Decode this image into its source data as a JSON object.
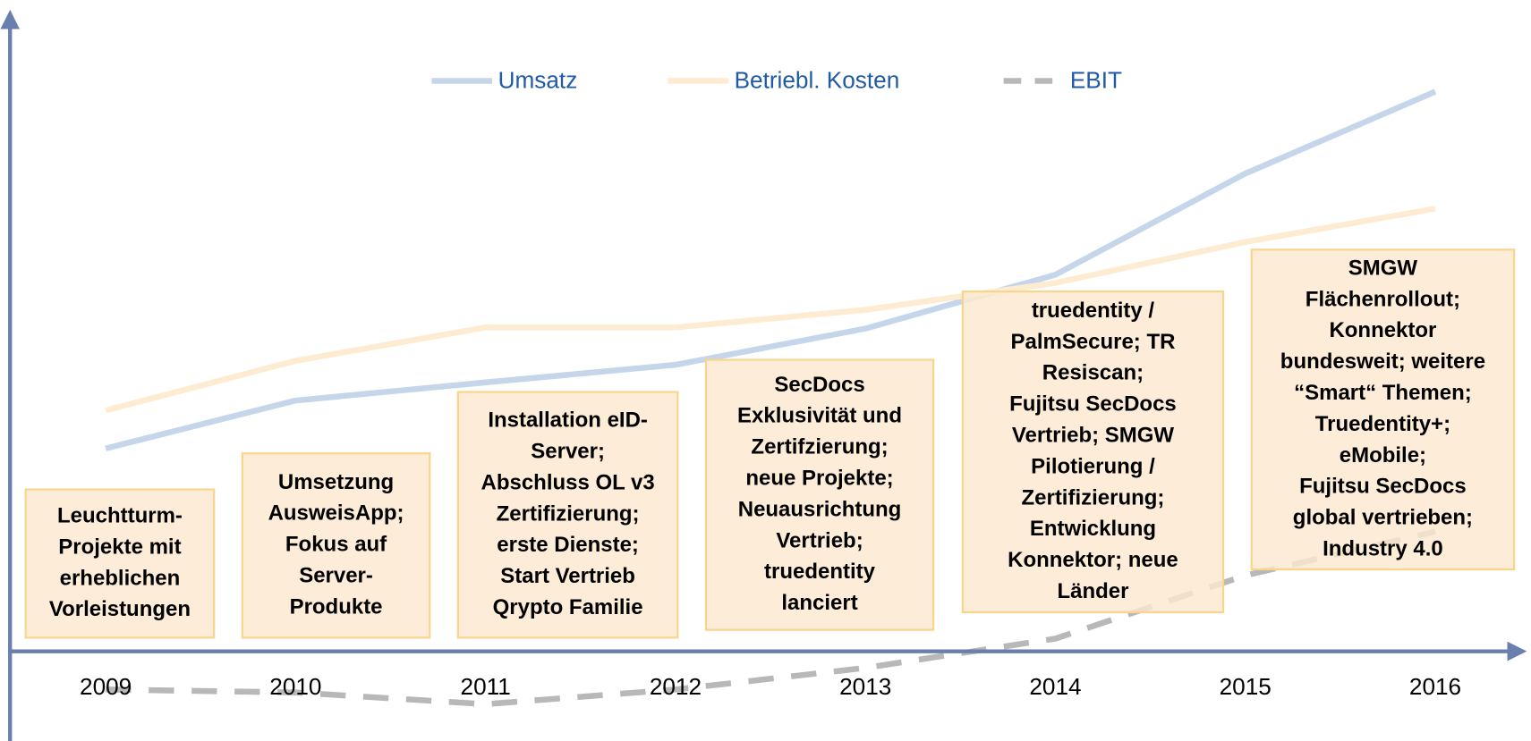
{
  "chart_data": {
    "type": "line",
    "categories": [
      "2009",
      "2010",
      "2011",
      "2012",
      "2013",
      "2014",
      "2015",
      "2016"
    ],
    "ylim": [
      -1.5,
      10.5
    ],
    "series": [
      {
        "name": "Umsatz",
        "color": "#c5d6ea",
        "dash": false,
        "values": [
          3.5,
          4.32,
          4.63,
          4.93,
          5.55,
          6.47,
          8.2,
          9.6
        ]
      },
      {
        "name": "Betriebl. Kosten",
        "color": "#fdebd2",
        "dash": false,
        "values": [
          4.15,
          5.0,
          5.57,
          5.57,
          5.87,
          6.33,
          7.03,
          7.6
        ]
      },
      {
        "name": "EBIT",
        "color": "#b8b8b8",
        "dash": true,
        "values": [
          -0.62,
          -0.67,
          -0.87,
          -0.62,
          -0.25,
          0.25,
          1.33,
          2.08
        ]
      }
    ],
    "legend": "top",
    "annotations": [
      [
        "Leuchtturm-",
        "Projekte mit",
        "erheblichen",
        "Vorleistungen"
      ],
      [
        "Umsetzung",
        "AusweisApp;",
        "Fokus auf",
        "Server-",
        "Produkte"
      ],
      [
        "Installation eID-",
        "Server;",
        "Abschluss OL v3",
        "Zertifizierung;",
        "erste Dienste;",
        "Start Vertrieb",
        "Qrypto Familie"
      ],
      [
        "SecDocs",
        "Exklusivität und",
        "Zertifzierung;",
        "neue Projekte;",
        "Neuausrichtung",
        "Vertrieb;",
        "truedentity",
        "lanciert"
      ],
      [
        "truedentity /",
        "PalmSecure; TR",
        "Resiscan;",
        "Fujitsu SecDocs",
        "Vertrieb; SMGW",
        "Pilotierung /",
        "Zertifizierung;",
        "Entwicklung",
        "Konnektor; neue",
        "Länder"
      ],
      [
        "SMGW",
        "Flächenrollout;",
        "Konnektor",
        "bundesweit; weitere",
        "“Smart“ Themen;",
        "Truedentity+;",
        "eMobile;",
        "Fujitsu SecDocs",
        "global vertrieben;",
        "Industry 4.0"
      ]
    ]
  }
}
